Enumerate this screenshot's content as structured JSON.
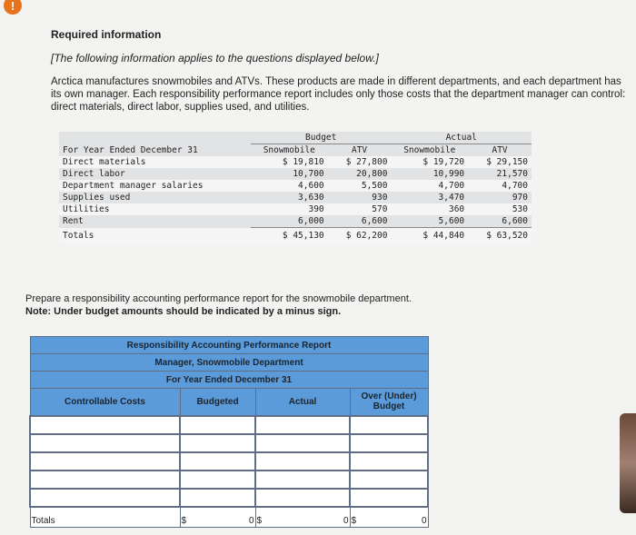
{
  "alert_icon": "!",
  "heading": "Required information",
  "subheading": "[The following information applies to the questions displayed below.]",
  "paragraph": "Arctica manufactures snowmobiles and ATVs. These products are made in different departments, and each department has its own manager. Each responsibility performance report includes only those costs that the department manager can control: direct materials, direct labor, supplies used, and utilities.",
  "data_table": {
    "group_headers": [
      "Budget",
      "Actual"
    ],
    "row_header": "For Year Ended December 31",
    "columns": [
      "Snowmobile",
      "ATV",
      "Snowmobile",
      "ATV"
    ],
    "rows": [
      {
        "label": "Direct materials",
        "values": [
          "$ 19,810",
          "$ 27,800",
          "$ 19,720",
          "$ 29,150"
        ]
      },
      {
        "label": "Direct labor",
        "values": [
          "10,700",
          "20,800",
          "10,990",
          "21,570"
        ]
      },
      {
        "label": "Department manager salaries",
        "values": [
          "4,600",
          "5,500",
          "4,700",
          "4,700"
        ]
      },
      {
        "label": "Supplies used",
        "values": [
          "3,630",
          "930",
          "3,470",
          "970"
        ]
      },
      {
        "label": "Utilities",
        "values": [
          "390",
          "570",
          "360",
          "530"
        ]
      },
      {
        "label": "Rent",
        "values": [
          "6,000",
          "6,600",
          "5,600",
          "6,600"
        ]
      },
      {
        "label": "Totals",
        "values": [
          "$ 45,130",
          "$ 62,200",
          "$ 44,840",
          "$ 63,520"
        ]
      }
    ]
  },
  "question": "Prepare a responsibility accounting performance report for the snowmobile department.",
  "note": "Note: Under budget amounts should be indicated by a minus sign.",
  "report": {
    "title": "Responsibility Accounting Performance Report",
    "manager": "Manager, Snowmobile Department",
    "period": "For Year Ended December 31",
    "columns": [
      "Controllable Costs",
      "Budgeted",
      "Actual",
      "Over (Under) Budget"
    ],
    "totals_label": "Totals",
    "currency": "$",
    "totals": [
      "0",
      "0",
      "0"
    ]
  }
}
